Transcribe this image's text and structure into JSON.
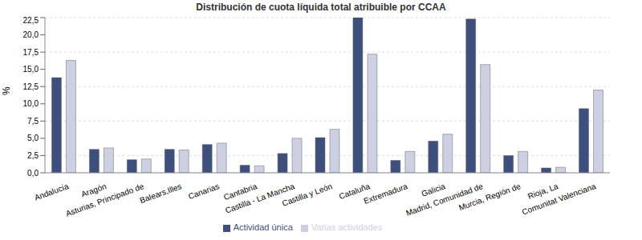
{
  "chart_data": {
    "type": "bar",
    "title": "Distribución de cuota líquida total atribuible por CCAA",
    "y_label": "%",
    "categories": [
      "Andalucía",
      "Aragón",
      "Asturias, Principado de",
      "Balears,Illes",
      "Canarias",
      "Cantabria",
      "Castilla - La Mancha",
      "Castilla y León",
      "Cataluña",
      "Extremadura",
      "Galicia",
      "Madrid, Comunidad de",
      "Murcia, Región de",
      "Rioja, La",
      "Comunitat Valenciana"
    ],
    "series": [
      {
        "name": "Actividad única",
        "color": "#3d4f7c",
        "values": [
          13.8,
          3.4,
          1.9,
          3.4,
          4.1,
          1.1,
          2.8,
          5.1,
          22.5,
          1.8,
          4.6,
          22.3,
          2.5,
          0.7,
          9.3
        ]
      },
      {
        "name": "Varias actividades",
        "color": "#cdd0e2",
        "values": [
          16.3,
          3.6,
          2.0,
          3.3,
          4.3,
          1.0,
          5.0,
          6.3,
          17.2,
          3.1,
          5.6,
          15.7,
          3.1,
          0.8,
          12.0
        ]
      }
    ],
    "ylim": [
      0,
      22.5
    ],
    "yticks": [
      {
        "value": 0,
        "label": "0,0"
      },
      {
        "value": 2.5,
        "label": "2,5"
      },
      {
        "value": 5,
        "label": "5,0"
      },
      {
        "value": 7.5,
        "label": "7,5"
      },
      {
        "value": 10,
        "label": "10,0"
      },
      {
        "value": 12.5,
        "label": "12,5"
      },
      {
        "value": 15,
        "label": "15,0"
      },
      {
        "value": 17.5,
        "label": "17,5"
      },
      {
        "value": 20,
        "label": "20,0"
      },
      {
        "value": 22.5,
        "label": "22,5"
      }
    ],
    "grid": true,
    "legend": "bottom"
  }
}
